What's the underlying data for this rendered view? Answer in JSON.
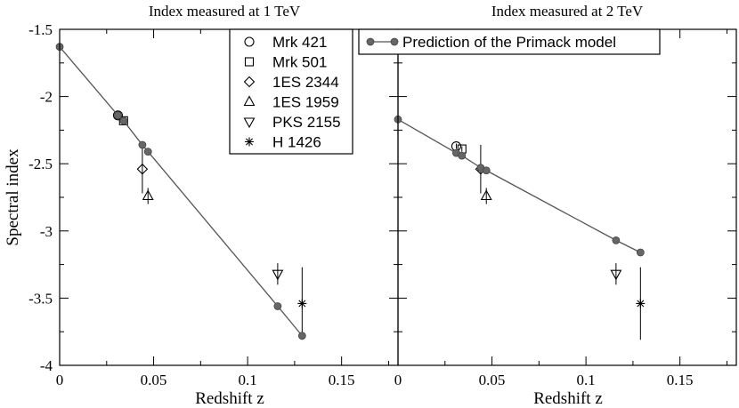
{
  "chart_data": [
    {
      "type": "scatter",
      "panel": "left",
      "title": "Index measured at 1 TeV",
      "xlabel": "Redshift z",
      "ylabel": "Spectral index",
      "xlim": [
        0,
        0.18
      ],
      "ylim": [
        -4,
        -1.5
      ],
      "xticks": [
        0,
        0.05,
        0.1,
        0.15
      ],
      "xtick_labels": [
        "0",
        "0.05",
        "0.1",
        "0.15"
      ],
      "yticks": [
        -1.5,
        -2,
        -2.5,
        -3,
        -3.5,
        -4
      ],
      "ytick_labels": [
        "-1.5",
        "-2",
        "-2.5",
        "-3",
        "-3.5",
        "-4"
      ],
      "legend": "top-right",
      "series": [
        {
          "name": "Mrk 421",
          "marker": "circle",
          "x": [
            0.031
          ],
          "y": [
            -2.14
          ],
          "yerr": [
            0.02
          ]
        },
        {
          "name": "Mrk 501",
          "marker": "square",
          "x": [
            0.034
          ],
          "y": [
            -2.18
          ],
          "yerr": [
            0.02
          ]
        },
        {
          "name": "1ES 2344",
          "marker": "diamond",
          "x": [
            0.044
          ],
          "y": [
            -2.54
          ],
          "yerr": [
            0.18
          ]
        },
        {
          "name": "1ES 1959",
          "marker": "triangle-up",
          "x": [
            0.047
          ],
          "y": [
            -2.74
          ],
          "yerr": [
            0.06
          ]
        },
        {
          "name": "PKS 2155",
          "marker": "triangle-down",
          "x": [
            0.116
          ],
          "y": [
            -3.32
          ],
          "yerr": [
            0.08
          ]
        },
        {
          "name": "H 1426",
          "marker": "star",
          "x": [
            0.129
          ],
          "y": [
            -3.54
          ],
          "yerr": [
            0.27
          ]
        },
        {
          "name": "Prediction of the Primack model",
          "marker": "filled-circle-line",
          "x": [
            0,
            0.031,
            0.034,
            0.044,
            0.047,
            0.116,
            0.129
          ],
          "y": [
            -1.63,
            -2.14,
            -2.18,
            -2.36,
            -2.41,
            -3.56,
            -3.78
          ]
        }
      ]
    },
    {
      "type": "scatter",
      "panel": "right",
      "title": "Index measured at 2 TeV",
      "xlabel": "Redshift z",
      "ylabel": "",
      "xlim": [
        0,
        0.18
      ],
      "ylim": [
        -4,
        -1.5
      ],
      "xticks": [
        0,
        0.05,
        0.1,
        0.15
      ],
      "xtick_labels": [
        "0",
        "0.05",
        "0.1",
        "0.15"
      ],
      "legend": "top",
      "series": [
        {
          "name": "Mrk 421",
          "marker": "circle",
          "x": [
            0.031
          ],
          "y": [
            -2.37
          ],
          "yerr": [
            0.02
          ]
        },
        {
          "name": "Mrk 501",
          "marker": "square",
          "x": [
            0.034
          ],
          "y": [
            -2.39
          ],
          "yerr": [
            0.02
          ]
        },
        {
          "name": "1ES 2344",
          "marker": "diamond",
          "x": [
            0.044
          ],
          "y": [
            -2.54
          ],
          "yerr": [
            0.18
          ]
        },
        {
          "name": "1ES 1959",
          "marker": "triangle-up",
          "x": [
            0.047
          ],
          "y": [
            -2.74
          ],
          "yerr": [
            0.06
          ]
        },
        {
          "name": "PKS 2155",
          "marker": "triangle-down",
          "x": [
            0.116
          ],
          "y": [
            -3.32
          ],
          "yerr": [
            0.08
          ]
        },
        {
          "name": "H 1426",
          "marker": "star",
          "x": [
            0.129
          ],
          "y": [
            -3.54
          ],
          "yerr": [
            0.27
          ]
        },
        {
          "name": "Prediction of the Primack model",
          "marker": "filled-circle-line",
          "x": [
            0,
            0.031,
            0.034,
            0.044,
            0.047,
            0.116,
            0.129
          ],
          "y": [
            -2.17,
            -2.42,
            -2.44,
            -2.53,
            -2.55,
            -3.07,
            -3.16
          ]
        }
      ]
    }
  ]
}
